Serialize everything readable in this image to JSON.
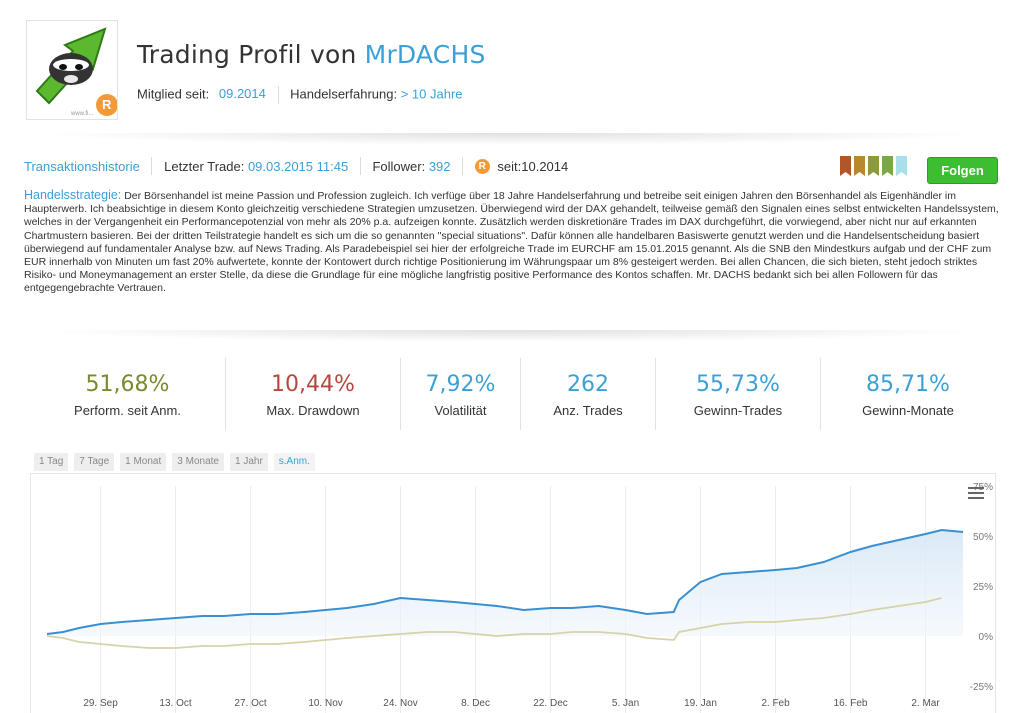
{
  "header": {
    "title_prefix": "Trading Profil von",
    "username": "MrDACHS",
    "member_since_label": "Mitglied seit:",
    "member_since_value": "09.2014",
    "experience_label": "Handelserfahrung:",
    "experience_value": "> 10 Jahre",
    "avatar_badge": "R",
    "avatar_caption": "www.fi..."
  },
  "infobar": {
    "history_link": "Transaktionshistorie",
    "last_trade_label": "Letzter Trade:",
    "last_trade_value": "09.03.2015 11:45",
    "follower_label": "Follower:",
    "follower_value": "392",
    "badge_letter": "R",
    "since_label": "seit:",
    "since_value": "10.2014",
    "flag_colors": [
      "#b0562a",
      "#b9882c",
      "#8c9a3a",
      "#7aa844",
      "#a9dfe8"
    ],
    "follow_label": "Folgen"
  },
  "strategy": {
    "label": "Handelsstrategie:",
    "text": "Der Börsenhandel ist meine Passion und Profession zugleich. Ich verfüge über 18 Jahre Handelserfahrung und betreibe seit einigen Jahren den Börsenhandel als Eigenhändler im Haupterwerb. Ich beabsichtige in diesem Konto gleichzeitig verschiedene Strategien umzusetzen. Überwiegend wird der DAX gehandelt, teilweise gemäß den Signalen eines selbst entwickelten Handelssystem, welches in der Vergangenheit ein Performancepotenzial von mehr als 20% p.a. aufzeigen konnte. Zusätzlich werden diskretionäre Trades im DAX durchgeführt, die vorwiegend, aber nicht nur auf erkannten Chartmustern basieren. Bei der dritten Teilstrategie handelt es sich um die so genannten \"special situations\". Dafür können alle handelbaren Basiswerte genutzt werden und die Handelsentscheidung basiert überwiegend auf fundamentaler Analyse bzw. auf News Trading. Als Paradebeispiel sei hier der erfolgreiche Trade im EURCHF am 15.01.2015 genannt. Als die SNB den Mindestkurs aufgab und der CHF zum EUR innerhalb von Minuten um fast 20% aufwertete, konnte der Kontowert durch richtige Positionierung im Währungspaar um 8% gesteigert werden. Bei allen Chancen, die sich bieten, steht jedoch striktes Risiko- und Moneymanagement an erster Stelle, da diese die Grundlage für eine mögliche langfristig positive Performance des Kontos schaffen. Mr. DACHS bedankt sich bei allen Followern für das entgegengebrachte Vertrauen."
  },
  "stats": [
    {
      "value": "51,68%",
      "label": "Perform. seit Anm.",
      "color": "#7a8a2e"
    },
    {
      "value": "10,44%",
      "label": "Max. Drawdown",
      "color": "#b5473e"
    },
    {
      "value": "7,92%",
      "label": "Volatilität",
      "color": "#3aa0d7"
    },
    {
      "value": "262",
      "label": "Anz. Trades",
      "color": "#3aa0d7"
    },
    {
      "value": "55,73%",
      "label": "Gewinn-Trades",
      "color": "#3aa0d7"
    },
    {
      "value": "85,71%",
      "label": "Gewinn-Monate",
      "color": "#3aa0d7"
    }
  ],
  "tabs": [
    "1 Tag",
    "7 Tage",
    "1 Monat",
    "3 Monate",
    "1 Jahr",
    "s.Anm."
  ],
  "active_tab": "s.Anm.",
  "chart_data": {
    "type": "line",
    "x_ticks": [
      "29. Sep",
      "13. Oct",
      "27. Oct",
      "10. Nov",
      "24. Nov",
      "8. Dec",
      "22. Dec",
      "5. Jan",
      "19. Jan",
      "2. Feb",
      "16. Feb",
      "2. Mar"
    ],
    "y_ticks": [
      "75%",
      "50%",
      "25%",
      "0%",
      "-25%"
    ],
    "ylim": [
      -25,
      75
    ],
    "x_range": [
      "2014-09-19",
      "2015-03-09"
    ],
    "series": [
      {
        "color": "#3a8fd0",
        "fill": "area",
        "x": [
          "2014-09-19",
          "2014-09-22",
          "2014-09-25",
          "2014-09-29",
          "2014-10-03",
          "2014-10-08",
          "2014-10-13",
          "2014-10-18",
          "2014-10-22",
          "2014-10-27",
          "2014-11-01",
          "2014-11-06",
          "2014-11-10",
          "2014-11-14",
          "2014-11-19",
          "2014-11-24",
          "2014-11-29",
          "2014-12-04",
          "2014-12-08",
          "2014-12-12",
          "2014-12-17",
          "2014-12-22",
          "2014-12-26",
          "2014-12-31",
          "2015-01-05",
          "2015-01-09",
          "2015-01-14",
          "2015-01-15",
          "2015-01-19",
          "2015-01-23",
          "2015-01-28",
          "2015-02-02",
          "2015-02-06",
          "2015-02-11",
          "2015-02-16",
          "2015-02-20",
          "2015-02-25",
          "2015-03-02",
          "2015-03-05",
          "2015-03-09"
        ],
        "y": [
          1,
          2,
          4,
          6,
          7,
          8,
          9,
          10,
          10,
          11,
          11,
          12,
          13,
          14,
          16,
          19,
          18,
          17,
          16,
          15,
          13,
          14,
          14,
          15,
          13,
          11,
          12,
          18,
          27,
          31,
          32,
          33,
          34,
          37,
          42,
          45,
          48,
          51,
          53,
          52
        ]
      },
      {
        "color": "#d6d3a8",
        "x": [
          "2014-09-19",
          "2014-09-22",
          "2014-09-25",
          "2014-09-29",
          "2014-10-03",
          "2014-10-08",
          "2014-10-13",
          "2014-10-18",
          "2014-10-22",
          "2014-10-27",
          "2014-11-01",
          "2014-11-06",
          "2014-11-10",
          "2014-11-14",
          "2014-11-19",
          "2014-11-24",
          "2014-11-29",
          "2014-12-04",
          "2014-12-08",
          "2014-12-12",
          "2014-12-17",
          "2014-12-22",
          "2014-12-26",
          "2014-12-31",
          "2015-01-05",
          "2015-01-09",
          "2015-01-14",
          "2015-01-15",
          "2015-01-19",
          "2015-01-23",
          "2015-01-28",
          "2015-02-02",
          "2015-02-06",
          "2015-02-11",
          "2015-02-16",
          "2015-02-20",
          "2015-02-25",
          "2015-03-02",
          "2015-03-05"
        ],
        "y": [
          0,
          -1,
          -3,
          -4,
          -5,
          -6,
          -6,
          -5,
          -5,
          -4,
          -4,
          -3,
          -2,
          -1,
          0,
          1,
          2,
          2,
          1,
          0,
          1,
          1,
          2,
          2,
          1,
          -1,
          -2,
          2,
          4,
          6,
          7,
          7,
          8,
          9,
          11,
          13,
          15,
          17,
          19
        ]
      }
    ]
  }
}
